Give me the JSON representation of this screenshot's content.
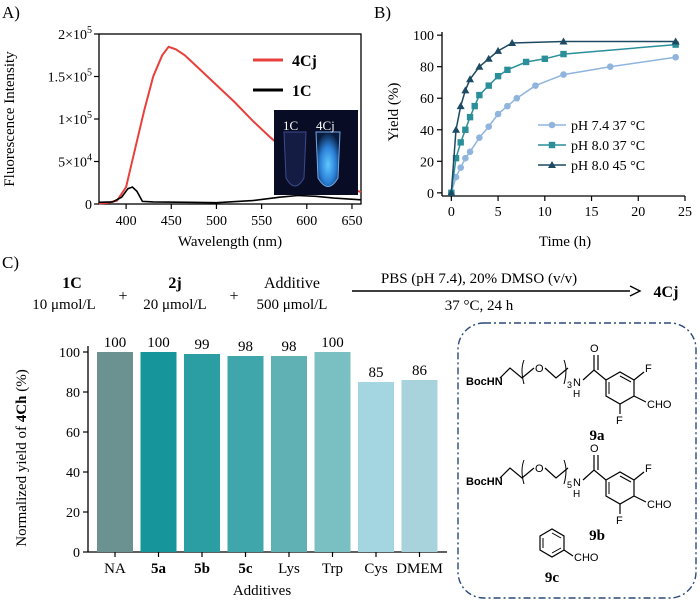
{
  "panels": {
    "a": "A)",
    "b": "B)",
    "c": "C)"
  },
  "chart_data": [
    {
      "type": "line",
      "title": "",
      "xlabel": "Wavelength (nm)",
      "ylabel": "Fluorescence Intensity",
      "xlim": [
        370,
        660
      ],
      "ylim": [
        0,
        200000
      ],
      "x_ticks": [
        "400",
        "450",
        "500",
        "550",
        "600",
        "650"
      ],
      "y_ticks": [
        "0",
        "5×10^4",
        "1×10^5",
        "1.5×10^5",
        "2×10^5"
      ],
      "inset_labels": [
        "1C",
        "4Cj"
      ],
      "series": [
        {
          "name": "4Cj",
          "color": "#e8403c",
          "points": [
            [
              370,
              500
            ],
            [
              380,
              1500
            ],
            [
              390,
              4000
            ],
            [
              400,
              20000
            ],
            [
              410,
              65000
            ],
            [
              420,
              110000
            ],
            [
              430,
              150000
            ],
            [
              440,
              175000
            ],
            [
              447,
              185000
            ],
            [
              455,
              182000
            ],
            [
              465,
              175000
            ],
            [
              480,
              160000
            ],
            [
              500,
              140000
            ],
            [
              520,
              120000
            ],
            [
              540,
              98000
            ],
            [
              560,
              78000
            ],
            [
              580,
              60000
            ],
            [
              600,
              44000
            ],
            [
              620,
              31000
            ],
            [
              640,
              21000
            ],
            [
              660,
              14000
            ]
          ]
        },
        {
          "name": "1C",
          "color": "#000000",
          "points": [
            [
              370,
              2000
            ],
            [
              385,
              2500
            ],
            [
              395,
              8000
            ],
            [
              402,
              18000
            ],
            [
              407,
              20000
            ],
            [
              412,
              15000
            ],
            [
              418,
              3000
            ],
            [
              430,
              2500
            ],
            [
              470,
              2000
            ],
            [
              500,
              1500
            ],
            [
              540,
              4000
            ],
            [
              570,
              8000
            ],
            [
              590,
              10000
            ],
            [
              610,
              9000
            ],
            [
              630,
              7000
            ],
            [
              660,
              5000
            ]
          ]
        }
      ]
    },
    {
      "type": "scatter",
      "title": "",
      "xlabel": "Time (h)",
      "ylabel": "Yield (%)",
      "xlim": [
        -1,
        25
      ],
      "ylim": [
        -2,
        102
      ],
      "x_ticks": [
        "0",
        "5",
        "10",
        "15",
        "20",
        "25"
      ],
      "y_ticks": [
        "0",
        "20",
        "40",
        "60",
        "80",
        "100"
      ],
      "series": [
        {
          "name": "pH 7.4 37 °C",
          "color": "#8fb4dd",
          "marker": "circle",
          "x": [
            0,
            0.5,
            1,
            1.5,
            2,
            3,
            4,
            5,
            6,
            7,
            9,
            12,
            17,
            24
          ],
          "y": [
            0,
            10,
            16,
            22,
            26,
            35,
            42,
            50,
            55,
            60,
            68,
            75,
            80,
            86
          ]
        },
        {
          "name": "pH 8.0 37 °C",
          "color": "#2b8f9a",
          "marker": "square",
          "x": [
            0,
            0.5,
            1,
            1.5,
            2,
            2.5,
            3,
            4,
            5,
            6,
            8,
            10,
            12,
            24
          ],
          "y": [
            0,
            22,
            32,
            40,
            48,
            55,
            62,
            68,
            74,
            78,
            83,
            85,
            88,
            94
          ]
        },
        {
          "name": "pH 8.0 45 °C",
          "color": "#1d4a63",
          "marker": "triangle",
          "x": [
            0,
            0.5,
            1,
            1.5,
            2,
            3,
            4,
            5,
            6.5,
            12,
            24
          ],
          "y": [
            0,
            40,
            55,
            65,
            72,
            80,
            85,
            90,
            95,
            96,
            96
          ]
        }
      ]
    },
    {
      "type": "bar",
      "title": "",
      "xlabel": "Additives",
      "ylabel": "Normalized yield of 4Ch (%)",
      "ylabel_parts": [
        "Normalized yield of ",
        "4Ch",
        " (%)"
      ],
      "ylim": [
        0,
        100
      ],
      "y_ticks": [
        "0",
        "20",
        "40",
        "60",
        "80",
        "100"
      ],
      "categories": [
        "NA",
        "5a",
        "5b",
        "5c",
        "Lys",
        "Trp",
        "Cys",
        "DMEM"
      ],
      "values": [
        100,
        100,
        99,
        98,
        98,
        100,
        85,
        86
      ],
      "value_labels": [
        "100",
        "100",
        "99",
        "98",
        "98",
        "100",
        "85",
        "86"
      ],
      "colors": [
        "#6b9190",
        "#16959b",
        "#2a9ea3",
        "#3fa7ab",
        "#5fb1b4",
        "#7ac0c2",
        "#a4d6e2",
        "#a9d3dc"
      ]
    }
  ],
  "reaction": {
    "r1_name": "1C",
    "r1_conc": "10 μmol/L",
    "r2_name": "2j",
    "r2_conc": "20 μmol/L",
    "r3_name": "Additive",
    "r3_conc": "500 μmol/L",
    "plus": "+",
    "conditions_top": "PBS (pH 7.4), 20% DMSO (v/v)",
    "conditions_bottom": "37 °C, 24 h",
    "product": "4Cj"
  },
  "structures": {
    "boc": "BocHN",
    "nh": "N",
    "h": "H",
    "o": "O",
    "f": "F",
    "cho": "CHO",
    "n3": "3",
    "n5": "5",
    "label_9a": "9a",
    "label_9b": "9b",
    "label_9c": "9c"
  }
}
